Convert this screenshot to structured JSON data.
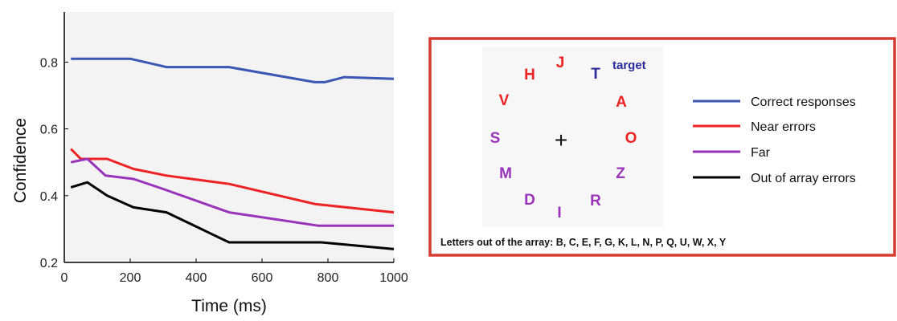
{
  "chart_data": {
    "type": "line",
    "title": "",
    "xlabel": "Time (ms)",
    "ylabel": "Confidence",
    "xlim": [
      0,
      1000
    ],
    "ylim": [
      0.2,
      0.95
    ],
    "xticks": [
      0,
      200,
      400,
      600,
      800,
      1000
    ],
    "yticks": [
      0.2,
      0.4,
      0.6,
      0.8
    ],
    "xtick_labels": [
      "0",
      "200",
      "400",
      "600",
      "800",
      "1000"
    ],
    "ytick_labels": [
      "0.2",
      "0.4",
      "0.6",
      "0.8"
    ],
    "grid": false,
    "legend_position": "right",
    "series": [
      {
        "name": "Correct responses",
        "color": "#3a55b4",
        "x": [
          20,
          200,
          310,
          500,
          760,
          790,
          850,
          1000
        ],
        "y": [
          0.81,
          0.81,
          0.785,
          0.785,
          0.74,
          0.74,
          0.755,
          0.75
        ]
      },
      {
        "name": "Near errors",
        "color": "#ee2222",
        "x": [
          20,
          50,
          130,
          210,
          310,
          500,
          760,
          1000
        ],
        "y": [
          0.54,
          0.51,
          0.51,
          0.48,
          0.46,
          0.435,
          0.375,
          0.35
        ]
      },
      {
        "name": "Far",
        "color": "#9933bb",
        "x": [
          20,
          70,
          125,
          210,
          300,
          500,
          770,
          1000
        ],
        "y": [
          0.5,
          0.51,
          0.46,
          0.45,
          0.42,
          0.35,
          0.31,
          0.31
        ]
      },
      {
        "name": "Out of array errors",
        "color": "#000000",
        "x": [
          20,
          70,
          130,
          210,
          310,
          500,
          780,
          1000
        ],
        "y": [
          0.425,
          0.44,
          0.4,
          0.365,
          0.35,
          0.26,
          0.26,
          0.24
        ]
      }
    ]
  },
  "array_panel": {
    "border_color": "#d63a2f",
    "fixation_symbol": "+",
    "target_label": "target",
    "target_label_color": "#2a2a9a",
    "letters": [
      {
        "char": "J",
        "color": "#ee2222"
      },
      {
        "char": "T",
        "color": "#2a2a9a"
      },
      {
        "char": "A",
        "color": "#ee2222"
      },
      {
        "char": "O",
        "color": "#ee2222"
      },
      {
        "char": "Z",
        "color": "#9933bb"
      },
      {
        "char": "R",
        "color": "#9933bb"
      },
      {
        "char": "I",
        "color": "#9933bb"
      },
      {
        "char": "D",
        "color": "#9933bb"
      },
      {
        "char": "M",
        "color": "#9933bb"
      },
      {
        "char": "S",
        "color": "#9933bb"
      },
      {
        "char": "V",
        "color": "#ee2222"
      },
      {
        "char": "H",
        "color": "#ee2222"
      }
    ],
    "footnote": "Letters out of the array: B, C, E, F, G, K, L, N, P, Q, U, W, X, Y"
  }
}
